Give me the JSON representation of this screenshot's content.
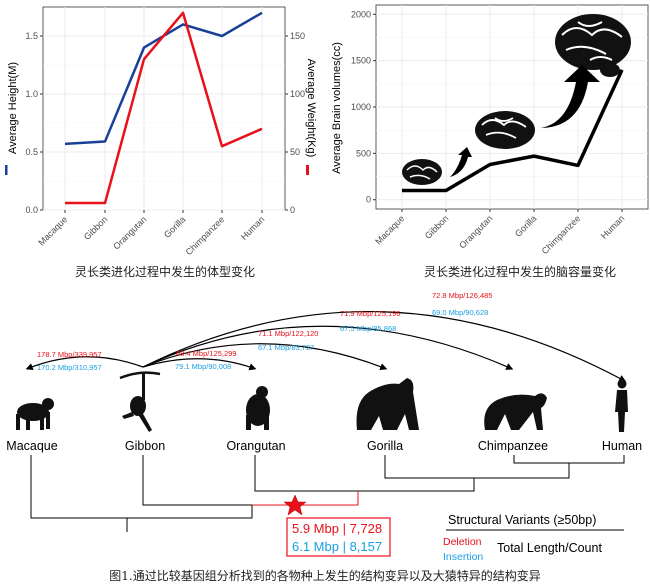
{
  "chart_data": [
    {
      "type": "line",
      "categories": [
        "Macaque",
        "Gibbon",
        "Orangutan",
        "Gorilla",
        "Chimpanzee",
        "Human"
      ],
      "series": [
        {
          "name": "Average Height(M)",
          "axis": "left",
          "color": "#1a3f99",
          "values": [
            0.57,
            0.59,
            1.4,
            1.6,
            1.5,
            1.7
          ]
        },
        {
          "name": "Average Weight(Kg)",
          "axis": "right",
          "color": "#e8101a",
          "values": [
            6,
            6,
            130,
            170,
            55,
            70
          ]
        }
      ],
      "ylabel": "Average Height(M)",
      "y2label": "Average Weight(Kg)",
      "ylim": [
        0,
        1.75
      ],
      "y2lim": [
        0,
        175
      ],
      "yticks": [
        "0.0",
        "0.5",
        "1.0",
        "1.5"
      ],
      "ytick_values": [
        0,
        0.5,
        1.0,
        1.5
      ],
      "y2ticks": [
        "0",
        "50",
        "100",
        "150"
      ],
      "y2tick_values": [
        0,
        50,
        100,
        150
      ],
      "caption": "灵长类进化过程中发生的体型变化",
      "grid": true
    },
    {
      "type": "line",
      "categories": [
        "Macaque",
        "Gibbon",
        "Orangutan",
        "Gorilla",
        "Chimpanzee",
        "Human"
      ],
      "series": [
        {
          "color": "#000000",
          "values": [
            100,
            100,
            380,
            470,
            370,
            1400
          ]
        }
      ],
      "ylabel": "Average Brain volumes(cc)",
      "ylim": [
        -100,
        2100
      ],
      "yticks": [
        "0",
        "500",
        "1000",
        "1500",
        "2000"
      ],
      "ytick_values": [
        0,
        500,
        1000,
        1500,
        2000
      ],
      "caption": "灵长类进化过程中发生的脑容量变化",
      "grid": true,
      "decorations": [
        "brain-icon",
        "arrow-up-icon"
      ]
    }
  ],
  "tree": {
    "species": [
      "Macaque",
      "Gibbon",
      "Orangutan",
      "Gorilla",
      "Chimpanzee",
      "Human"
    ],
    "arcs": [
      {
        "target": "Macaque",
        "deletion": "178.7 Mbp/339,957",
        "insertion": "170.2 Mbp/310,957"
      },
      {
        "target": "Orangutan",
        "deletion": "68.4 Mbp/125,299",
        "insertion": "79.1 Mbp/90,008"
      },
      {
        "target": "Gorilla",
        "deletion": "71.1 Mbp/122,120",
        "insertion": "67.1 Mbp/83,727"
      },
      {
        "target": "Chimpanzee",
        "deletion": "71.9 Mbp/125,196",
        "insertion": "67.5 Mbp/85,868"
      },
      {
        "target": "Human",
        "deletion": "72.8 Mbp/126,485",
        "insertion": "69.0 Mbp/90,628"
      }
    ],
    "great_ape_box": {
      "deletion": "5.9 Mbp | 7,728",
      "insertion": "6.1 Mbp | 8,157"
    },
    "legend": {
      "title": "Structural Variants (≥50bp)",
      "deletion": "Deletion",
      "insertion": "Insertion",
      "metric": "Total Length/Count"
    },
    "colors": {
      "deletion": "#e8101a",
      "insertion": "#1a9fe0"
    }
  },
  "caption": "图1.通过比较基因组分析找到的各物种上发生的结构变异以及大猿特异的结构变异"
}
